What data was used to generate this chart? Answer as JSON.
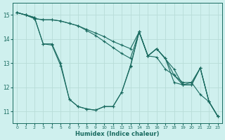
{
  "xlabel": "Humidex (Indice chaleur)",
  "background_color": "#cff0ee",
  "grid_color": "#b8dcd8",
  "line_color": "#1a6b60",
  "xlim": [
    -0.5,
    23.5
  ],
  "ylim": [
    10.5,
    15.5
  ],
  "yticks": [
    11,
    12,
    13,
    14,
    15
  ],
  "xticks": [
    0,
    1,
    2,
    3,
    4,
    5,
    6,
    7,
    8,
    9,
    10,
    11,
    12,
    13,
    14,
    15,
    16,
    17,
    18,
    19,
    20,
    21,
    22,
    23
  ],
  "lines": [
    {
      "x": [
        0,
        1,
        2,
        3,
        4,
        5,
        6,
        7,
        8,
        9,
        10,
        11,
        12,
        13,
        14,
        15,
        16,
        17,
        18,
        19,
        20,
        21,
        22,
        23
      ],
      "y": [
        15.1,
        15.0,
        14.9,
        13.8,
        13.8,
        13.0,
        11.5,
        11.2,
        11.1,
        11.05,
        11.2,
        11.2,
        11.8,
        12.9,
        14.3,
        13.3,
        13.6,
        13.2,
        12.2,
        12.1,
        12.2,
        11.7,
        11.4,
        10.8
      ]
    },
    {
      "x": [
        0,
        1,
        2,
        3,
        4,
        5,
        6,
        7,
        8,
        9,
        10,
        11,
        12,
        13,
        14,
        15,
        16,
        17,
        18,
        19,
        20,
        21,
        22,
        23
      ],
      "y": [
        15.1,
        15.0,
        14.85,
        14.8,
        14.8,
        14.75,
        14.65,
        14.55,
        14.4,
        14.25,
        14.1,
        13.9,
        13.75,
        13.6,
        14.3,
        13.3,
        13.6,
        13.2,
        12.5,
        12.2,
        12.2,
        12.8,
        11.4,
        10.8
      ]
    },
    {
      "x": [
        0,
        1,
        2,
        3,
        4,
        5,
        6,
        7,
        8,
        9,
        10,
        11,
        12,
        13,
        14,
        15,
        16,
        17,
        18,
        19,
        20,
        21,
        22,
        23
      ],
      "y": [
        15.1,
        15.0,
        14.85,
        14.8,
        14.8,
        14.75,
        14.65,
        14.55,
        14.35,
        14.15,
        13.9,
        13.65,
        13.4,
        13.2,
        14.3,
        13.3,
        13.25,
        12.75,
        12.5,
        12.1,
        12.1,
        12.8,
        11.4,
        10.8
      ]
    },
    {
      "x": [
        0,
        1,
        2,
        3,
        4,
        5,
        6,
        7,
        8,
        9,
        10,
        11,
        12,
        13,
        14,
        15,
        16,
        18,
        19,
        20,
        21,
        22,
        23
      ],
      "y": [
        15.1,
        15.0,
        14.9,
        13.8,
        13.75,
        12.9,
        11.5,
        11.2,
        11.1,
        11.05,
        11.2,
        11.2,
        11.8,
        12.85,
        14.3,
        13.3,
        13.6,
        12.75,
        12.1,
        12.1,
        12.8,
        11.4,
        10.8
      ]
    }
  ]
}
